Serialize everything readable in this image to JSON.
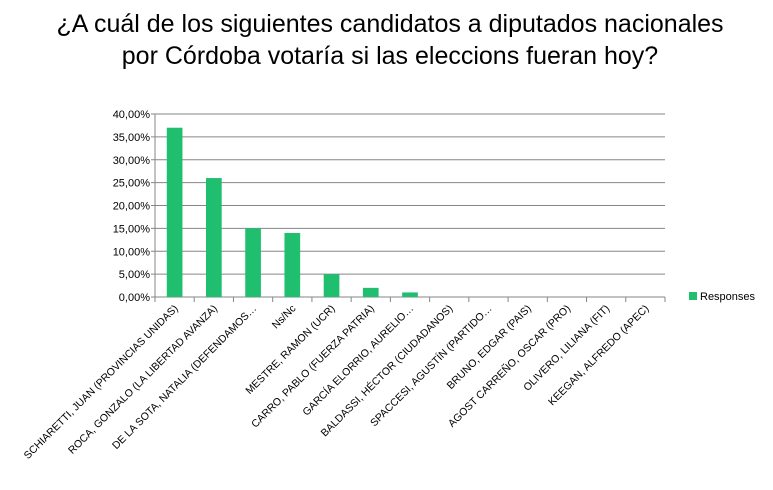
{
  "chart_data": {
    "type": "bar",
    "title": "¿A cuál de los siguientes candidatos a diputados nacionales por Córdoba votaría si las eleccions fueran hoy?",
    "categories": [
      "SCHIARETTI, JUAN (PROVINCIAS UNIDAS)",
      "ROCA, GONZALO (LA LIBERTAD AVANZA)",
      "DE LA SOTA, NATALIA (DEFENDAMOS…",
      "Ns/Nc",
      "MESTRE, RAMON (UCR)",
      "CARRO, PABLO (FUERZA PATRIA)",
      "GARCÍA ELORRIO, AURELIO…",
      "BALDASSI, HÉCTOR (CIUDADANOS)",
      "SPACCESI, AGUSTÍN (PARTIDO…",
      "BRUNO, EDGAR (PAIS)",
      "AGOST CARREÑO, OSCAR (PRO)",
      "OLIVERO, LILIANA (FIT)",
      "KEEGAN, ALFREDO (APEC)"
    ],
    "series": [
      {
        "name": "Responses",
        "values": [
          37,
          26,
          15,
          14,
          5,
          2,
          1,
          0,
          0,
          0,
          0,
          0,
          0
        ]
      }
    ],
    "yticks": [
      "0,00%",
      "5,00%",
      "10,00%",
      "15,00%",
      "20,00%",
      "25,00%",
      "30,00%",
      "35,00%",
      "40,00%"
    ],
    "ylim": [
      0,
      40
    ],
    "unit": "%",
    "grid": true,
    "legend_position": "right",
    "colors": {
      "bar": "#1fbf6f",
      "grid": "#868686",
      "axis": "#868686"
    }
  }
}
